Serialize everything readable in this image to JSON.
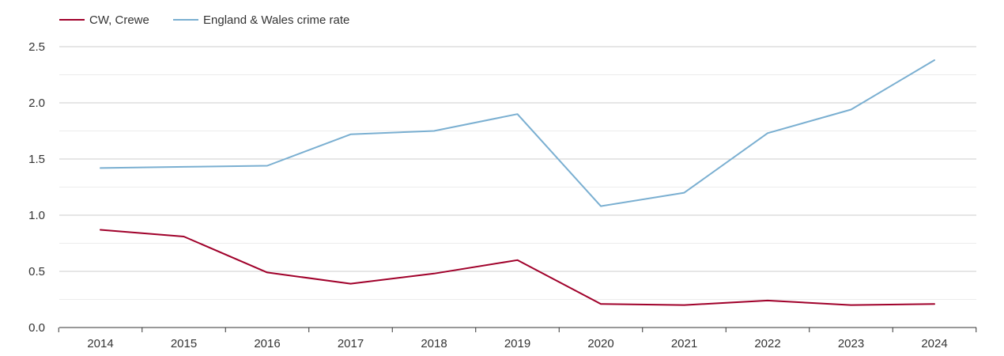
{
  "chart_data": {
    "type": "line",
    "title": "",
    "xlabel": "",
    "ylabel": "",
    "categories": [
      "2014",
      "2015",
      "2016",
      "2017",
      "2018",
      "2019",
      "2020",
      "2021",
      "2022",
      "2023",
      "2024"
    ],
    "ylim": [
      0,
      2.5
    ],
    "yticks": [
      "0.0",
      "0.5",
      "1.0",
      "1.5",
      "2.0",
      "2.5"
    ],
    "grid": true,
    "legend_position": "top-left",
    "series": [
      {
        "name": "CW, Crewe",
        "color": "#a0002a",
        "values": [
          0.87,
          0.81,
          0.49,
          0.39,
          0.48,
          0.6,
          0.21,
          0.2,
          0.24,
          0.2,
          0.21
        ]
      },
      {
        "name": "England & Wales crime rate",
        "color": "#7aafd1",
        "values": [
          1.42,
          1.43,
          1.44,
          1.72,
          1.75,
          1.9,
          1.08,
          1.2,
          1.73,
          1.94,
          2.38
        ]
      }
    ]
  }
}
